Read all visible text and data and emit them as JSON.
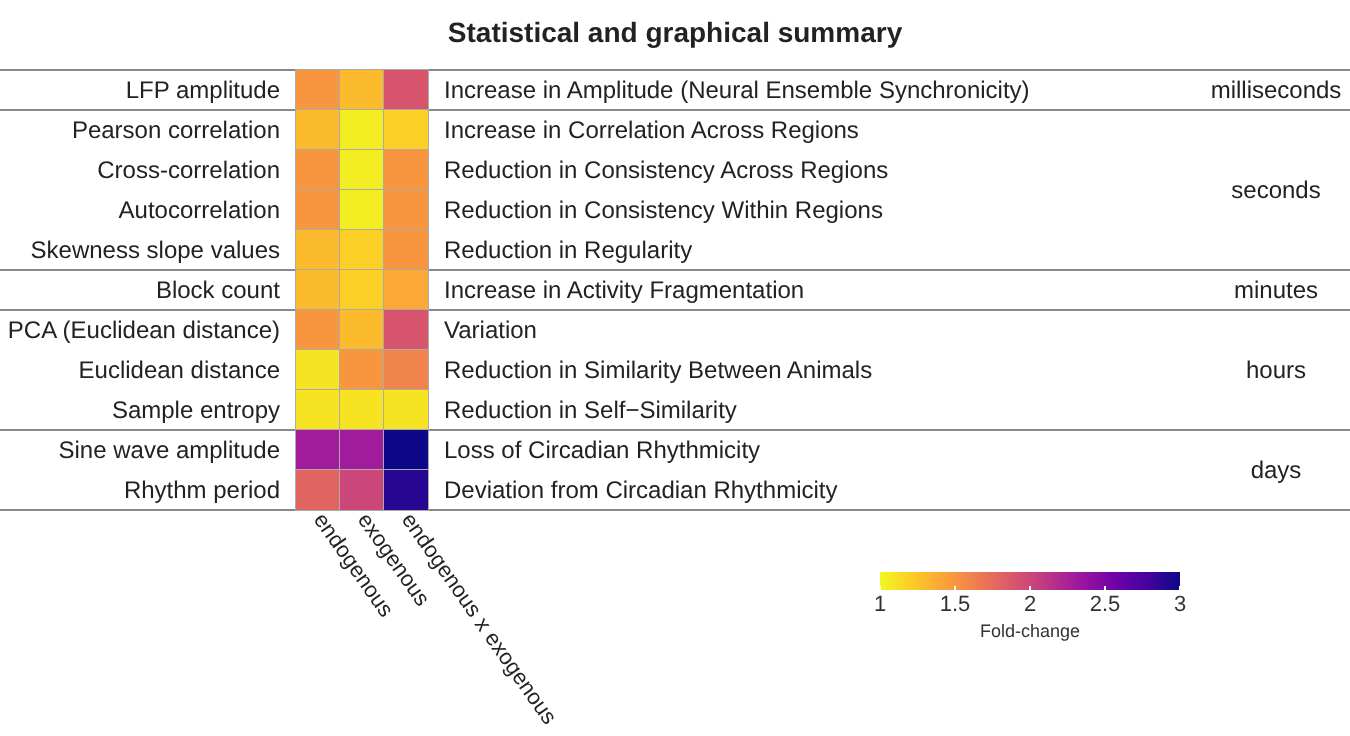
{
  "chart_data": {
    "type": "heatmap",
    "title": "Statistical and graphical summary",
    "categories": [
      "endogenous",
      "exogenous",
      "endogenous x exogenous"
    ],
    "y_categories": [
      "LFP amplitude",
      "Pearson correlation",
      "Cross-correlation",
      "Autocorrelation",
      "Skewness slope values",
      "Block count",
      "PCA (Euclidean distance)",
      "Euclidean distance",
      "Sample entropy",
      "Sine wave amplitude",
      "Rhythm period"
    ],
    "y2_categories": [
      "Increase in Amplitude (Neural Ensemble Synchronicity)",
      "Increase in Correlation Across Regions",
      "Reduction in Consistency Across Regions",
      "Reduction in Consistency Within Regions",
      "Reduction in Regularity",
      "Increase in Activity Fragmentation",
      "Variation",
      "Reduction in Similarity Between Animals",
      "Reduction in Self−Similarity",
      "Loss of Circadian Rhythmicity",
      "Deviation from Circadian Rhythmicity"
    ],
    "cells": [
      [
        1.5,
        1.3,
        1.9
      ],
      [
        1.3,
        1.05,
        1.2
      ],
      [
        1.5,
        1.05,
        1.5
      ],
      [
        1.5,
        1.05,
        1.5
      ],
      [
        1.3,
        1.2,
        1.5
      ],
      [
        1.3,
        1.2,
        1.4
      ],
      [
        1.5,
        1.3,
        1.9
      ],
      [
        1.1,
        1.5,
        1.6
      ],
      [
        1.1,
        1.1,
        1.1
      ],
      [
        2.3,
        2.3,
        3.0
      ],
      [
        1.8,
        2.0,
        2.9
      ]
    ],
    "clim": [
      1,
      3
    ],
    "cticks": [
      1,
      1.5,
      2,
      2.5,
      3
    ],
    "clabel": "Fold-change",
    "annotations": [
      "milliseconds",
      "seconds",
      "minutes",
      "hours",
      "days"
    ]
  }
}
